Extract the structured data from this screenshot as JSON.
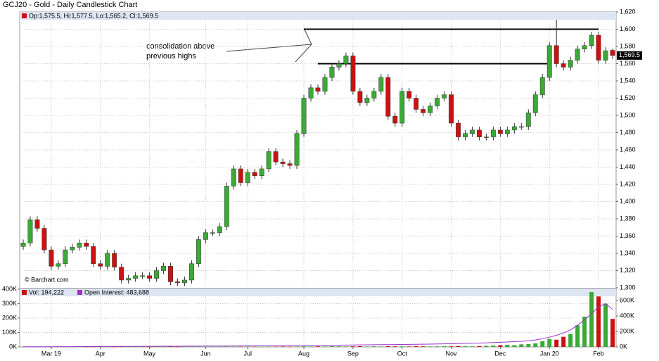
{
  "chart_data": [
    {
      "type": "candlestick",
      "title": "GCJ20 - Gold - Daily Candlestick Chart",
      "legend_text": "Op:1,575.5, Hi:1,577.5, Lo:1,565.2, Cl:1,569.5",
      "watermark": "© Barchart.com",
      "annotation": [
        "consolidation above",
        "previous highs"
      ],
      "last_price_label": "1,569.5",
      "up_color": "#3aaa35",
      "down_color": "#cc1111",
      "grid": true,
      "categories": [
        null,
        null,
        null,
        null,
        "Mar 19",
        null,
        null,
        null,
        null,
        null,
        null,
        "Apr",
        null,
        null,
        null,
        null,
        null,
        null,
        "May",
        null,
        null,
        null,
        null,
        null,
        null,
        null,
        "Jun",
        null,
        null,
        null,
        null,
        null,
        "Jul",
        null,
        null,
        null,
        null,
        null,
        null,
        null,
        "Aug",
        null,
        null,
        null,
        null,
        null,
        null,
        "Sep",
        null,
        null,
        null,
        null,
        null,
        null,
        "Oct",
        null,
        null,
        null,
        null,
        null,
        null,
        "Nov",
        null,
        null,
        null,
        null,
        null,
        null,
        "Dec",
        null,
        null,
        null,
        null,
        null,
        null,
        "Jan 20",
        null,
        null,
        null,
        null,
        null,
        null,
        "Feb",
        null,
        null
      ],
      "open": [
        1348,
        1352,
        1379,
        1369,
        1344,
        1325,
        1328,
        1344,
        1347,
        1352,
        1348,
        1328,
        1325,
        1340,
        1324,
        1309,
        1311,
        1314,
        1314,
        1311,
        1320,
        1325,
        1307,
        1306,
        1309,
        1328,
        1356,
        1364,
        1364,
        1371,
        1418,
        1438,
        1422,
        1434,
        1430,
        1438,
        1458,
        1446,
        1444,
        1442,
        1479,
        1520,
        1532,
        1528,
        1544,
        1556,
        1560,
        1569,
        1528,
        1515,
        1520,
        1528,
        1544,
        1499,
        1491,
        1528,
        1520,
        1507,
        1503,
        1511,
        1520,
        1524,
        1491,
        1475,
        1479,
        1483,
        1475,
        1475,
        1483,
        1479,
        1483,
        1487,
        1487,
        1503,
        1524,
        1544,
        1581,
        1560,
        1556,
        1564,
        1577,
        1581,
        1593,
        1564,
        1575.5
      ],
      "high": [
        1356,
        1383,
        1383,
        1373,
        1348,
        1332,
        1348,
        1351,
        1356,
        1356,
        1352,
        1332,
        1344,
        1344,
        1328,
        1315,
        1318,
        1318,
        1318,
        1324,
        1329,
        1329,
        1311,
        1313,
        1332,
        1360,
        1368,
        1368,
        1375,
        1422,
        1442,
        1442,
        1438,
        1438,
        1442,
        1462,
        1462,
        1450,
        1448,
        1483,
        1524,
        1536,
        1536,
        1548,
        1560,
        1564,
        1573,
        1573,
        1532,
        1524,
        1532,
        1548,
        1548,
        1503,
        1532,
        1532,
        1524,
        1511,
        1515,
        1524,
        1528,
        1528,
        1495,
        1483,
        1487,
        1487,
        1479,
        1487,
        1487,
        1487,
        1491,
        1491,
        1507,
        1528,
        1548,
        1585,
        1611,
        1564,
        1568,
        1581,
        1585,
        1597,
        1597,
        1579,
        1577.5
      ],
      "low": [
        1344,
        1348,
        1365,
        1340,
        1321,
        1321,
        1324,
        1340,
        1343,
        1344,
        1324,
        1321,
        1321,
        1320,
        1305,
        1305,
        1307,
        1310,
        1307,
        1307,
        1316,
        1303,
        1302,
        1302,
        1305,
        1324,
        1352,
        1360,
        1360,
        1367,
        1414,
        1418,
        1418,
        1426,
        1426,
        1434,
        1442,
        1440,
        1438,
        1438,
        1475,
        1516,
        1524,
        1524,
        1540,
        1552,
        1556,
        1524,
        1511,
        1511,
        1516,
        1524,
        1495,
        1487,
        1487,
        1516,
        1503,
        1499,
        1499,
        1507,
        1516,
        1487,
        1471,
        1471,
        1475,
        1471,
        1471,
        1471,
        1475,
        1475,
        1479,
        1483,
        1483,
        1499,
        1520,
        1540,
        1556,
        1552,
        1552,
        1560,
        1573,
        1577,
        1560,
        1560,
        1565.2
      ],
      "close": [
        1352,
        1379,
        1369,
        1344,
        1325,
        1328,
        1344,
        1347,
        1352,
        1348,
        1328,
        1325,
        1340,
        1324,
        1309,
        1311,
        1314,
        1314,
        1311,
        1320,
        1325,
        1307,
        1306,
        1309,
        1328,
        1356,
        1364,
        1364,
        1371,
        1418,
        1438,
        1422,
        1434,
        1430,
        1438,
        1458,
        1446,
        1444,
        1442,
        1479,
        1520,
        1532,
        1528,
        1544,
        1556,
        1560,
        1569,
        1528,
        1515,
        1520,
        1528,
        1544,
        1499,
        1491,
        1528,
        1520,
        1507,
        1503,
        1511,
        1520,
        1524,
        1491,
        1475,
        1479,
        1483,
        1475,
        1475,
        1483,
        1479,
        1483,
        1487,
        1487,
        1503,
        1524,
        1544,
        1581,
        1560,
        1556,
        1564,
        1577,
        1581,
        1593,
        1564,
        1575,
        1569.5
      ],
      "reference_lines": [
        {
          "value": 1600,
          "from": 40,
          "to": 82
        },
        {
          "value": 1560,
          "from": 42,
          "to": 75
        }
      ],
      "ylim": [
        1300,
        1620
      ],
      "yticks": [
        {
          "value": 1300,
          "label": "1,300"
        },
        {
          "value": 1320,
          "label": "1,320"
        },
        {
          "value": 1340,
          "label": "1,340"
        },
        {
          "value": 1360,
          "label": "1,360"
        },
        {
          "value": 1380,
          "label": "1,380"
        },
        {
          "value": 1400,
          "label": "1,400"
        },
        {
          "value": 1420,
          "label": "1,420"
        },
        {
          "value": 1440,
          "label": "1,440"
        },
        {
          "value": 1460,
          "label": "1,460"
        },
        {
          "value": 1480,
          "label": "1,480"
        },
        {
          "value": 1500,
          "label": "1,500"
        },
        {
          "value": 1520,
          "label": "1,520"
        },
        {
          "value": 1540,
          "label": "1,540"
        },
        {
          "value": 1560,
          "label": "1,560"
        },
        {
          "value": 1580,
          "label": "1,580"
        },
        {
          "value": 1600,
          "label": "1,600"
        },
        {
          "value": 1620,
          "label": "1,620"
        }
      ]
    },
    {
      "type": "volume",
      "series": [
        {
          "name": "Vol: 194,222",
          "color": "#cc1111",
          "values": [
            1000,
            2000,
            1000,
            2000,
            1000,
            1000,
            2000,
            1000,
            2000,
            1000,
            1000,
            2000,
            1000,
            1000,
            2000,
            1000,
            2000,
            1000,
            1000,
            2000,
            1000,
            2000,
            1000,
            1000,
            2000,
            2000,
            1000,
            2000,
            2000,
            3000,
            2000,
            2000,
            3000,
            2000,
            2000,
            3000,
            2000,
            3000,
            2000,
            3000,
            4000,
            3000,
            4000,
            3000,
            5000,
            4000,
            3000,
            4000,
            5000,
            3000,
            4000,
            3000,
            5000,
            4000,
            4000,
            3000,
            5000,
            4000,
            3000,
            4000,
            5000,
            4000,
            6000,
            5000,
            4000,
            6000,
            8000,
            10000,
            12000,
            15000,
            12000,
            18000,
            20000,
            25000,
            40000,
            55000,
            50000,
            70000,
            90000,
            150000,
            210000,
            380000,
            350000,
            300000,
            194222
          ]
        },
        {
          "name": "Open Interest: 483,688",
          "color": "#9933cc",
          "axis": "y2",
          "values": [
            2000,
            2000,
            3000,
            3000,
            3000,
            4000,
            4000,
            4000,
            5000,
            5000,
            5000,
            6000,
            6000,
            6000,
            7000,
            7000,
            7000,
            8000,
            8000,
            8000,
            9000,
            9000,
            9000,
            10000,
            10000,
            10000,
            11000,
            11000,
            12000,
            12000,
            13000,
            13000,
            14000,
            14000,
            15000,
            15000,
            16000,
            16000,
            17000,
            17000,
            18000,
            19000,
            20000,
            21000,
            22000,
            23000,
            24000,
            25000,
            26000,
            27000,
            28000,
            29000,
            30000,
            31000,
            32000,
            33000,
            34000,
            35000,
            36000,
            38000,
            40000,
            42000,
            44000,
            46000,
            48000,
            50000,
            53000,
            56000,
            60000,
            64000,
            68000,
            73000,
            80000,
            90000,
            105000,
            125000,
            150000,
            180000,
            220000,
            280000,
            350000,
            430000,
            520000,
            560000,
            483688
          ]
        }
      ],
      "ylim": [
        0,
        400000
      ],
      "yticks": [
        {
          "value": 0,
          "label": "0K"
        },
        {
          "value": 100000,
          "label": "100K"
        },
        {
          "value": 200000,
          "label": "200K"
        },
        {
          "value": 300000,
          "label": "300K"
        },
        {
          "value": 400000,
          "label": "400K"
        }
      ],
      "y2lim": [
        0,
        745000
      ],
      "y2ticks": [
        {
          "value": 0,
          "label": "0K"
        },
        {
          "value": 200000,
          "label": "200K"
        },
        {
          "value": 400000,
          "label": "400K"
        },
        {
          "value": 600000,
          "label": "600K"
        }
      ]
    }
  ]
}
